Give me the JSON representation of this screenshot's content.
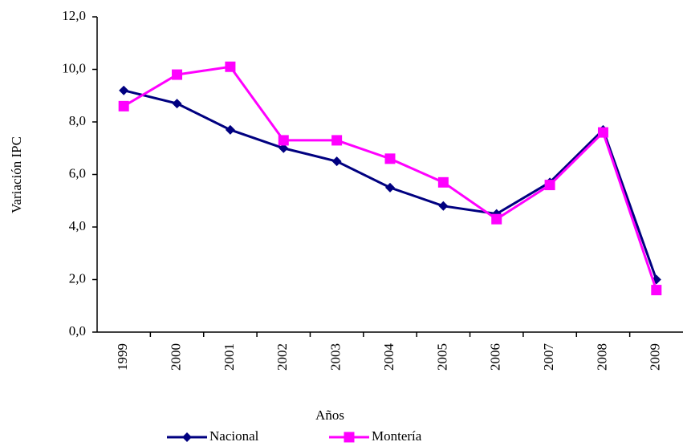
{
  "chart_data": {
    "type": "line",
    "y_label": "Variación IPC",
    "x_label": "Años",
    "categories": [
      "1999",
      "2000",
      "2001",
      "2002",
      "2003",
      "2004",
      "2005",
      "2006",
      "2007",
      "2008",
      "2009"
    ],
    "series": [
      {
        "name": "Nacional",
        "color": "#000080",
        "marker": "diamond",
        "values": [
          9.2,
          8.7,
          7.7,
          7.0,
          6.5,
          5.5,
          4.8,
          4.5,
          5.7,
          7.7,
          2.0
        ]
      },
      {
        "name": "Montería",
        "color": "#ff00ff",
        "marker": "square",
        "values": [
          8.6,
          9.8,
          10.1,
          7.3,
          7.3,
          6.6,
          5.7,
          4.3,
          5.6,
          7.6,
          1.6
        ]
      }
    ],
    "ylim": [
      0,
      12
    ],
    "yticks": [
      {
        "value": 0,
        "label": "0,0"
      },
      {
        "value": 2,
        "label": "2,0"
      },
      {
        "value": 4,
        "label": "4,0"
      },
      {
        "value": 6,
        "label": "6,0"
      },
      {
        "value": 8,
        "label": "8,0"
      },
      {
        "value": 10,
        "label": "10,0"
      },
      {
        "value": 12,
        "label": "12,0"
      }
    ],
    "legend": "bottom"
  }
}
